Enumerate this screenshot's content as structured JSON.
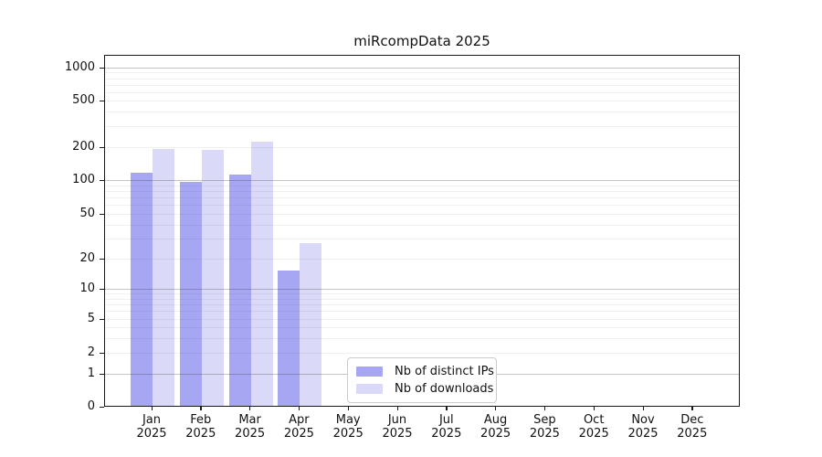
{
  "title": "miRcompData 2025",
  "chart_data": {
    "type": "bar",
    "title": "miRcompData 2025",
    "x_categories": [
      {
        "month": "Jan",
        "year": "2025"
      },
      {
        "month": "Feb",
        "year": "2025"
      },
      {
        "month": "Mar",
        "year": "2025"
      },
      {
        "month": "Apr",
        "year": "2025"
      },
      {
        "month": "May",
        "year": "2025"
      },
      {
        "month": "Jun",
        "year": "2025"
      },
      {
        "month": "Jul",
        "year": "2025"
      },
      {
        "month": "Aug",
        "year": "2025"
      },
      {
        "month": "Sep",
        "year": "2025"
      },
      {
        "month": "Oct",
        "year": "2025"
      },
      {
        "month": "Nov",
        "year": "2025"
      },
      {
        "month": "Dec",
        "year": "2025"
      }
    ],
    "series": [
      {
        "name": "Nb of distinct IPs",
        "color": "#a6a6f2",
        "values": [
          115,
          95,
          110,
          15,
          0,
          0,
          0,
          0,
          0,
          0,
          0,
          0
        ]
      },
      {
        "name": "Nb of downloads",
        "color": "#dadaf8",
        "values": [
          190,
          185,
          220,
          27,
          0,
          0,
          0,
          0,
          0,
          0,
          0,
          0
        ]
      }
    ],
    "y_axis": {
      "scale": "log-like",
      "ticks": [
        0,
        1,
        2,
        5,
        10,
        20,
        50,
        100,
        200,
        500,
        1000
      ]
    },
    "grid": {
      "major_values": [
        1,
        10,
        100,
        1000
      ],
      "minor_values": [
        2,
        3,
        4,
        5,
        6,
        7,
        8,
        9,
        20,
        30,
        40,
        50,
        60,
        70,
        80,
        90,
        200,
        300,
        400,
        500,
        600,
        700,
        800,
        900
      ],
      "major_color": "rgba(60,60,60,0.30)",
      "minor_color": "rgba(60,60,60,0.08)"
    },
    "legend_position": "lower center"
  }
}
